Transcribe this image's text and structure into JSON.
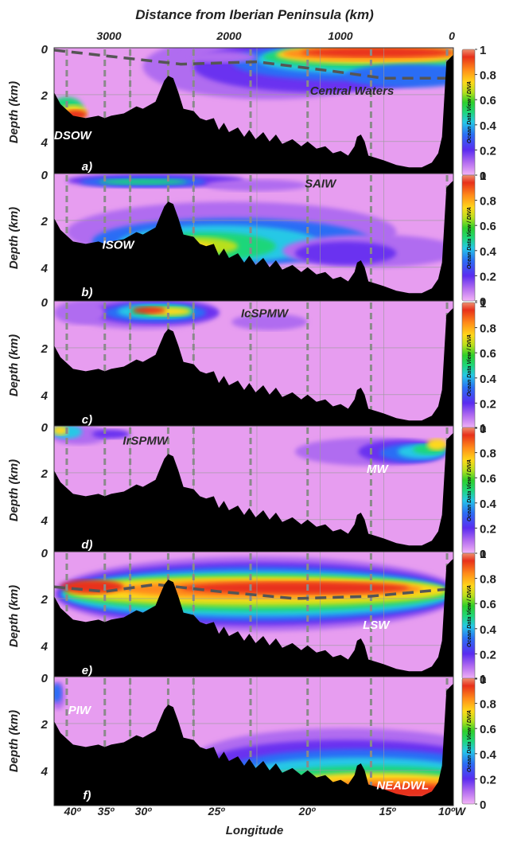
{
  "figure": {
    "top_axis_title": "Distance from Iberian Peninsula (km)",
    "top_ticks": [
      "3000",
      "2000",
      "1000",
      "0"
    ],
    "x_axis_title": "Longitude",
    "x_ticks": [
      "40º",
      "35º",
      "30º",
      "25º",
      "20º",
      "15º",
      "10ºW"
    ],
    "y_axis_title": "Depth (km)",
    "y_ticks": [
      "0",
      "2",
      "4"
    ],
    "colorbar_ticks": [
      "1",
      "0.8",
      "0.6",
      "0.4",
      "0.2",
      "0"
    ],
    "colorbar_credit": "Ocean Data View / DIVA",
    "colors": {
      "bathymetry": "#000000",
      "background": "#e79df0",
      "station_line": "#8a8a8a",
      "dashed_line": "#555555"
    }
  },
  "chart_data": [
    {
      "type": "heatmap",
      "panel_label": "a)",
      "water_masses": [
        "DSOW",
        "Central Waters"
      ],
      "xlim": [
        41,
        9.5
      ],
      "ylim_km": [
        5.5,
        0
      ],
      "value_range": [
        0,
        1
      ],
      "stations_lon": [
        40,
        37,
        35,
        32,
        30,
        25.5,
        21,
        16,
        10
      ],
      "dashed_line": [
        [
          41,
          0.1
        ],
        [
          36,
          0.4
        ],
        [
          31,
          0.7
        ],
        [
          25,
          0.6
        ],
        [
          19,
          1.0
        ],
        [
          15,
          1.3
        ],
        [
          10,
          1.3
        ]
      ],
      "feature": "max near surface east of 25ºW; DSOW core at bottom near 40ºW"
    },
    {
      "type": "heatmap",
      "panel_label": "b)",
      "water_masses": [
        "SAIW",
        "ISOW"
      ],
      "xlim": [
        41,
        9.5
      ],
      "ylim_km": [
        5.5,
        0
      ],
      "value_range": [
        0,
        1
      ],
      "stations_lon": [
        40,
        37,
        35,
        32,
        30,
        25.5,
        21,
        16,
        10
      ],
      "feature": "SAIW in upper 500 m west of 20ºW; ISOW overflow 2-3.5 km east of Reykjanes Ridge"
    },
    {
      "type": "heatmap",
      "panel_label": "c)",
      "water_masses": [
        "IcSPMW"
      ],
      "xlim": [
        41,
        9.5
      ],
      "ylim_km": [
        5.5,
        0
      ],
      "value_range": [
        0,
        1
      ],
      "stations_lon": [
        40,
        37,
        35,
        32,
        30,
        25.5,
        21,
        16,
        10
      ],
      "feature": "IcSPMW core 0-800 m between 36ºW and 28ºW"
    },
    {
      "type": "heatmap",
      "panel_label": "d)",
      "water_masses": [
        "IrSPMW",
        "MW"
      ],
      "xlim": [
        41,
        9.5
      ],
      "ylim_km": [
        5.5,
        0
      ],
      "value_range": [
        0,
        1
      ],
      "stations_lon": [
        40,
        37,
        35,
        32,
        30,
        25.5,
        21,
        16,
        10
      ],
      "feature": "IrSPMW near surface west of 35ºW; MW at ~1 km east of 20ºW"
    },
    {
      "type": "heatmap",
      "panel_label": "e)",
      "water_masses": [
        "LSW"
      ],
      "xlim": [
        41,
        9.5
      ],
      "ylim_km": [
        5.5,
        0
      ],
      "value_range": [
        0,
        1
      ],
      "stations_lon": [
        40,
        37,
        35,
        32,
        30,
        25.5,
        21,
        16,
        10
      ],
      "dashed_line": [
        [
          41,
          1.5
        ],
        [
          37,
          1.7
        ],
        [
          33,
          1.4
        ],
        [
          28,
          1.7
        ],
        [
          22,
          2.0
        ],
        [
          16,
          1.9
        ],
        [
          10,
          1.6
        ]
      ],
      "feature": "LSW core 1-2.5 km across the whole section"
    },
    {
      "type": "heatmap",
      "panel_label": "f)",
      "water_masses": [
        "PIW",
        "NEADWL"
      ],
      "xlim": [
        41,
        9.5
      ],
      "ylim_km": [
        5.5,
        0
      ],
      "value_range": [
        0,
        1
      ],
      "stations_lon": [
        40,
        37,
        35,
        32,
        30,
        25.5,
        21,
        16,
        10
      ],
      "feature": "PIW near surface at 41ºW; NEADWL near bottom east of 28ºW"
    }
  ]
}
